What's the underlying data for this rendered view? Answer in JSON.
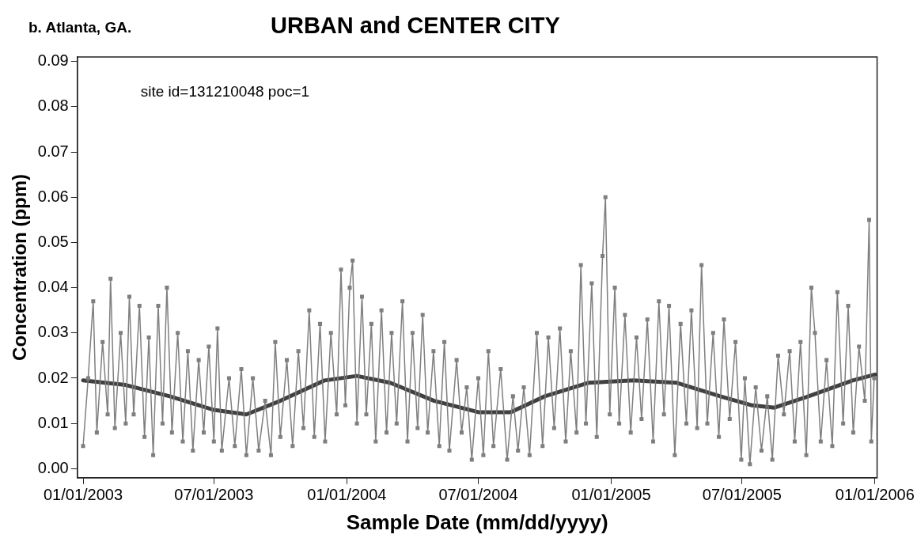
{
  "chart_data": {
    "type": "line",
    "title": "URBAN and CENTER CITY",
    "subtitle": "b. Atlanta, GA.",
    "xlabel": "Sample Date (mm/dd/yyyy)",
    "ylabel": "Concentration (ppm)",
    "annotations": [
      "site id=131210048 poc=1"
    ],
    "xlim": [
      "2002-12-24",
      "2006-01-04"
    ],
    "xticks": [
      {
        "value": "2003-01-01",
        "label": "01/01/2003"
      },
      {
        "value": "2003-07-01",
        "label": "07/01/2003"
      },
      {
        "value": "2004-01-01",
        "label": "01/01/2004"
      },
      {
        "value": "2004-07-01",
        "label": "07/01/2004"
      },
      {
        "value": "2005-01-01",
        "label": "01/01/2005"
      },
      {
        "value": "2005-07-01",
        "label": "07/01/2005"
      },
      {
        "value": "2006-01-01",
        "label": "01/01/2006"
      }
    ],
    "ylim": [
      -0.002,
      0.091
    ],
    "yticks": [
      {
        "value": 0,
        "label": "0.00"
      },
      {
        "value": 0.01,
        "label": "0.01"
      },
      {
        "value": 0.02,
        "label": "0.02"
      },
      {
        "value": 0.03,
        "label": "0.03"
      },
      {
        "value": 0.04,
        "label": "0.04"
      },
      {
        "value": 0.05,
        "label": "0.05"
      },
      {
        "value": 0.06,
        "label": "0.06"
      },
      {
        "value": 0.07,
        "label": "0.07"
      },
      {
        "value": 0.08,
        "label": "0.08"
      },
      {
        "value": 0.09,
        "label": "0.09"
      }
    ],
    "grid": false,
    "legend": false,
    "line_style": "solid",
    "series": [
      {
        "color": "#7f7f7f",
        "marker": "square",
        "x": [
          "2003-01-01",
          "2003-01-08",
          "2003-01-15",
          "2003-01-20",
          "2003-01-28",
          "2003-02-04",
          "2003-02-08",
          "2003-02-14",
          "2003-02-22",
          "2003-03-01",
          "2003-03-06",
          "2003-03-12",
          "2003-03-20",
          "2003-03-27",
          "2003-04-02",
          "2003-04-08",
          "2003-04-15",
          "2003-04-21",
          "2003-04-27",
          "2003-05-04",
          "2003-05-12",
          "2003-05-19",
          "2003-05-26",
          "2003-06-02",
          "2003-06-10",
          "2003-06-17",
          "2003-06-24",
          "2003-07-01",
          "2003-07-06",
          "2003-07-12",
          "2003-07-22",
          "2003-07-30",
          "2003-08-08",
          "2003-08-15",
          "2003-08-24",
          "2003-09-01",
          "2003-09-10",
          "2003-09-18",
          "2003-09-24",
          "2003-10-01",
          "2003-10-10",
          "2003-10-18",
          "2003-10-26",
          "2003-11-02",
          "2003-11-10",
          "2003-11-17",
          "2003-11-25",
          "2003-12-02",
          "2003-12-10",
          "2003-12-18",
          "2003-12-24",
          "2003-12-30",
          "2004-01-05",
          "2004-01-09",
          "2004-01-15",
          "2004-01-22",
          "2004-01-28",
          "2004-02-04",
          "2004-02-10",
          "2004-02-18",
          "2004-02-25",
          "2004-03-03",
          "2004-03-10",
          "2004-03-18",
          "2004-03-25",
          "2004-04-01",
          "2004-04-08",
          "2004-04-15",
          "2004-04-22",
          "2004-04-30",
          "2004-05-08",
          "2004-05-15",
          "2004-05-22",
          "2004-06-01",
          "2004-06-08",
          "2004-06-15",
          "2004-06-22",
          "2004-07-01",
          "2004-07-08",
          "2004-07-15",
          "2004-07-22",
          "2004-08-01",
          "2004-08-10",
          "2004-08-18",
          "2004-08-25",
          "2004-09-02",
          "2004-09-10",
          "2004-09-20",
          "2004-09-28",
          "2004-10-06",
          "2004-10-14",
          "2004-10-22",
          "2004-10-30",
          "2004-11-06",
          "2004-11-14",
          "2004-11-20",
          "2004-11-27",
          "2004-12-05",
          "2004-12-12",
          "2004-12-20",
          "2004-12-24",
          "2004-12-30",
          "2005-01-06",
          "2005-01-12",
          "2005-01-20",
          "2005-01-28",
          "2005-02-05",
          "2005-02-12",
          "2005-02-20",
          "2005-02-28",
          "2005-03-08",
          "2005-03-15",
          "2005-03-22",
          "2005-03-30",
          "2005-04-07",
          "2005-04-15",
          "2005-04-22",
          "2005-04-30",
          "2005-05-06",
          "2005-05-14",
          "2005-05-22",
          "2005-05-30",
          "2005-06-06",
          "2005-06-14",
          "2005-06-22",
          "2005-06-30",
          "2005-07-05",
          "2005-07-12",
          "2005-07-20",
          "2005-07-28",
          "2005-08-05",
          "2005-08-12",
          "2005-08-20",
          "2005-08-28",
          "2005-09-05",
          "2005-09-12",
          "2005-09-20",
          "2005-09-28",
          "2005-10-05",
          "2005-10-10",
          "2005-10-18",
          "2005-10-26",
          "2005-11-03",
          "2005-11-10",
          "2005-11-18",
          "2005-11-25",
          "2005-12-02",
          "2005-12-10",
          "2005-12-18",
          "2005-12-24",
          "2005-12-27",
          "2005-12-31"
        ],
        "values": [
          0.005,
          0.02,
          0.037,
          0.008,
          0.028,
          0.012,
          0.042,
          0.009,
          0.03,
          0.01,
          0.038,
          0.012,
          0.036,
          0.007,
          0.029,
          0.003,
          0.036,
          0.01,
          0.04,
          0.008,
          0.03,
          0.006,
          0.026,
          0.004,
          0.024,
          0.008,
          0.027,
          0.006,
          0.031,
          0.004,
          0.02,
          0.005,
          0.022,
          0.003,
          0.02,
          0.004,
          0.015,
          0.003,
          0.028,
          0.007,
          0.024,
          0.005,
          0.026,
          0.009,
          0.035,
          0.007,
          0.032,
          0.006,
          0.03,
          0.012,
          0.044,
          0.014,
          0.04,
          0.046,
          0.01,
          0.038,
          0.012,
          0.032,
          0.006,
          0.035,
          0.008,
          0.03,
          0.01,
          0.037,
          0.006,
          0.03,
          0.009,
          0.034,
          0.008,
          0.026,
          0.005,
          0.028,
          0.004,
          0.024,
          0.008,
          0.018,
          0.002,
          0.02,
          0.003,
          0.026,
          0.005,
          0.022,
          0.002,
          0.016,
          0.004,
          0.018,
          0.003,
          0.03,
          0.005,
          0.029,
          0.009,
          0.031,
          0.006,
          0.026,
          0.008,
          0.045,
          0.01,
          0.041,
          0.007,
          0.047,
          0.06,
          0.012,
          0.04,
          0.01,
          0.034,
          0.008,
          0.029,
          0.011,
          0.033,
          0.006,
          0.037,
          0.012,
          0.036,
          0.003,
          0.032,
          0.01,
          0.035,
          0.009,
          0.045,
          0.01,
          0.03,
          0.007,
          0.033,
          0.011,
          0.028,
          0.002,
          0.02,
          0.001,
          0.018,
          0.004,
          0.016,
          0.002,
          0.025,
          0.012,
          0.026,
          0.006,
          0.028,
          0.003,
          0.04,
          0.03,
          0.006,
          0.024,
          0.005,
          0.039,
          0.01,
          0.036,
          0.008,
          0.027,
          0.015,
          0.055,
          0.006,
          0.02
        ]
      },
      {
        "color": "#404040",
        "marker": "none",
        "x": [
          "2003-01-01",
          "2003-03-01",
          "2003-05-01",
          "2003-07-01",
          "2003-08-15",
          "2003-10-01",
          "2003-12-01",
          "2004-01-15",
          "2004-03-01",
          "2004-05-01",
          "2004-07-01",
          "2004-08-15",
          "2004-10-01",
          "2004-12-01",
          "2005-02-01",
          "2005-04-01",
          "2005-06-01",
          "2005-07-15",
          "2005-08-15",
          "2005-10-01",
          "2005-12-01",
          "2006-01-01"
        ],
        "values": [
          0.0195,
          0.0185,
          0.016,
          0.013,
          0.012,
          0.015,
          0.0195,
          0.0205,
          0.019,
          0.015,
          0.0125,
          0.0125,
          0.016,
          0.019,
          0.0195,
          0.019,
          0.016,
          0.014,
          0.0135,
          0.016,
          0.0195,
          0.0208
        ]
      }
    ]
  }
}
